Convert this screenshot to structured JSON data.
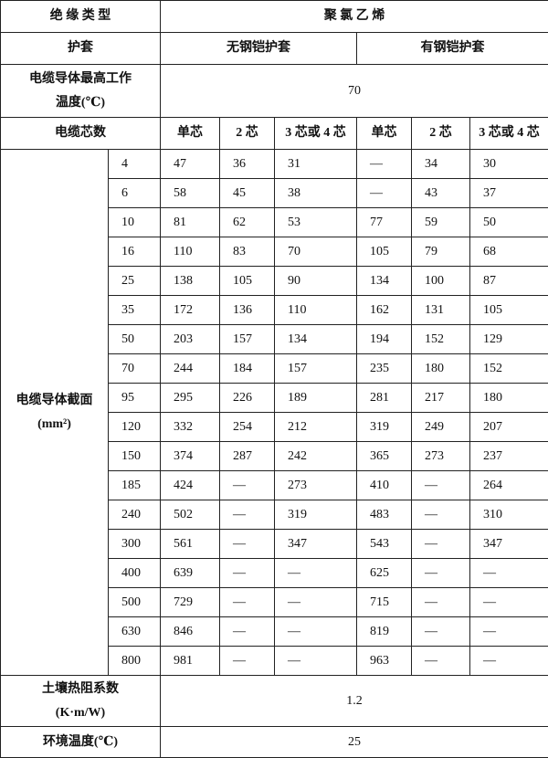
{
  "header": {
    "insulation_type_label": "绝 缘 类 型",
    "insulation_type": "聚 氯 乙 烯",
    "sheath_label": "护套",
    "sheath_types": [
      "无钢铠护套",
      "有钢铠护套"
    ],
    "max_temp_label": [
      "电缆导体最高工作",
      "温度(℃)"
    ],
    "max_temp": 70,
    "cores_label": "电缆芯数",
    "cores": [
      "单芯",
      "2 芯",
      "3 芯或 4 芯",
      "单芯",
      "2 芯",
      "3 芯或 4 芯"
    ]
  },
  "section_label": "电缆导体截面",
  "section_unit": "(mm²)",
  "rows": [
    [
      4,
      47,
      36,
      31,
      "—",
      34,
      30
    ],
    [
      6,
      58,
      45,
      38,
      "—",
      43,
      37
    ],
    [
      10,
      81,
      62,
      53,
      77,
      59,
      50
    ],
    [
      16,
      110,
      83,
      70,
      105,
      79,
      68
    ],
    [
      25,
      138,
      105,
      90,
      134,
      100,
      87
    ],
    [
      35,
      172,
      136,
      110,
      162,
      131,
      105
    ],
    [
      50,
      203,
      157,
      134,
      194,
      152,
      129
    ],
    [
      70,
      244,
      184,
      157,
      235,
      180,
      152
    ],
    [
      95,
      295,
      226,
      189,
      281,
      217,
      180
    ],
    [
      120,
      332,
      254,
      212,
      319,
      249,
      207
    ],
    [
      150,
      374,
      287,
      242,
      365,
      273,
      237
    ],
    [
      185,
      424,
      "—",
      273,
      410,
      "—",
      264
    ],
    [
      240,
      502,
      "—",
      319,
      483,
      "—",
      310
    ],
    [
      300,
      561,
      "—",
      347,
      543,
      "—",
      347
    ],
    [
      400,
      639,
      "—",
      "—",
      625,
      "—",
      "—"
    ],
    [
      500,
      729,
      "—",
      "—",
      715,
      "—",
      "—"
    ],
    [
      630,
      846,
      "—",
      "—",
      819,
      "—",
      "—"
    ],
    [
      800,
      981,
      "—",
      "—",
      963,
      "—",
      "—"
    ]
  ],
  "soil_label": [
    "土壤热阻系数",
    "(K·m/W)"
  ],
  "soil_value": 1.2,
  "ambient_label": "环境温度(℃)",
  "ambient_value": 25
}
